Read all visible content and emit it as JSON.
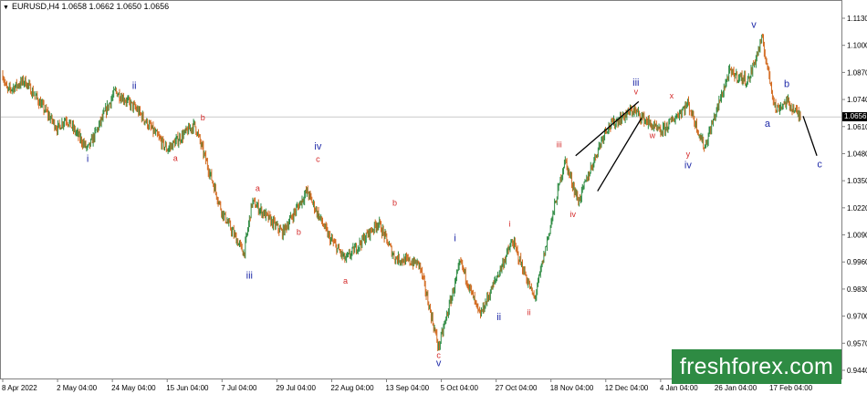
{
  "header": {
    "symbol": "EURUSD,H4",
    "ohlc": "1.0658 1.0662 1.0650 1.0656"
  },
  "current_price_label": "1.0656",
  "brand": "freshforex.com",
  "colors": {
    "up_candle": "#2e8b43",
    "down_candle": "#d2691e",
    "primary_wave_label": "#1f2aa8",
    "minor_wave_label": "#d42a2a",
    "trend_lines": "#000000",
    "brand_bg": "#2e8b43",
    "price_line": "#c8c8c8"
  },
  "chart_data": {
    "type": "candlestick",
    "instrument": "EURUSD",
    "timeframe": "H4",
    "x_tick_labels": [
      "8 Apr 2022",
      "2 May 04:00",
      "24 May 04:00",
      "15 Jun 04:00",
      "7 Jul 04:00",
      "29 Jul 04:00",
      "22 Aug 04:00",
      "13 Sep 04:00",
      "5 Oct 04:00",
      "27 Oct 04:00",
      "18 Nov 04:00",
      "12 Dec 04:00",
      "4 Jan 04:00",
      "26 Jan 04:00",
      "17 Feb 04:00"
    ],
    "y_tick_labels": [
      "1.1130",
      "1.1000",
      "1.0870",
      "1.0740",
      "1.0610",
      "1.0480",
      "1.0350",
      "1.0220",
      "1.0090",
      "0.9960",
      "0.9830",
      "0.9700",
      "0.9570",
      "0.9440"
    ],
    "ylim": [
      0.944,
      1.113
    ],
    "current_price": 1.0656,
    "price_path": [
      {
        "x": 0,
        "y": 1.086
      },
      {
        "x": 0.08,
        "y": 1.078
      },
      {
        "x": 0.4,
        "y": 1.083
      },
      {
        "x": 1.0,
        "y": 1.06
      },
      {
        "x": 1.15,
        "y": 1.065
      },
      {
        "x": 1.55,
        "y": 1.05
      },
      {
        "x": 2.05,
        "y": 1.078
      },
      {
        "x": 2.45,
        "y": 1.069
      },
      {
        "x": 3.0,
        "y": 1.05
      },
      {
        "x": 3.5,
        "y": 1.062
      },
      {
        "x": 4.0,
        "y": 1.02
      },
      {
        "x": 4.4,
        "y": 1.0
      },
      {
        "x": 4.55,
        "y": 1.025
      },
      {
        "x": 5.1,
        "y": 1.01
      },
      {
        "x": 5.55,
        "y": 1.03
      },
      {
        "x": 5.95,
        "y": 1.008
      },
      {
        "x": 6.25,
        "y": 0.997
      },
      {
        "x": 6.85,
        "y": 1.015
      },
      {
        "x": 7.15,
        "y": 0.998
      },
      {
        "x": 7.6,
        "y": 0.995
      },
      {
        "x": 7.95,
        "y": 0.955
      },
      {
        "x": 8.0,
        "y": 0.96
      },
      {
        "x": 8.35,
        "y": 0.996
      },
      {
        "x": 8.7,
        "y": 0.97
      },
      {
        "x": 8.95,
        "y": 0.985
      },
      {
        "x": 9.3,
        "y": 1.006
      },
      {
        "x": 9.7,
        "y": 0.978
      },
      {
        "x": 10.25,
        "y": 1.045
      },
      {
        "x": 10.5,
        "y": 1.025
      },
      {
        "x": 11.0,
        "y": 1.06
      },
      {
        "x": 11.5,
        "y": 1.069
      },
      {
        "x": 12.0,
        "y": 1.058
      },
      {
        "x": 12.5,
        "y": 1.072
      },
      {
        "x": 12.8,
        "y": 1.051
      },
      {
        "x": 13.25,
        "y": 1.087
      },
      {
        "x": 13.6,
        "y": 1.083
      },
      {
        "x": 13.85,
        "y": 1.103
      },
      {
        "x": 14.1,
        "y": 1.069
      },
      {
        "x": 14.3,
        "y": 1.073
      },
      {
        "x": 14.55,
        "y": 1.0656
      }
    ],
    "wave_labels": [
      {
        "text": "ii",
        "x": 2.4,
        "y": 1.079,
        "level": "primary"
      },
      {
        "text": "i",
        "x": 1.55,
        "y": 1.044,
        "level": "primary"
      },
      {
        "text": "b",
        "x": 3.65,
        "y": 1.064,
        "level": "minor"
      },
      {
        "text": "a",
        "x": 3.15,
        "y": 1.0445,
        "level": "minor"
      },
      {
        "text": "iv",
        "x": 5.75,
        "y": 1.05,
        "level": "primary"
      },
      {
        "text": "c",
        "x": 5.75,
        "y": 1.044,
        "level": "minor"
      },
      {
        "text": "a",
        "x": 4.65,
        "y": 1.03,
        "level": "minor"
      },
      {
        "text": "b",
        "x": 5.4,
        "y": 1.009,
        "level": "minor"
      },
      {
        "text": "iii",
        "x": 4.5,
        "y": 0.988,
        "level": "primary"
      },
      {
        "text": "b",
        "x": 7.15,
        "y": 1.023,
        "level": "minor"
      },
      {
        "text": "a",
        "x": 6.25,
        "y": 0.9855,
        "level": "minor"
      },
      {
        "text": "i",
        "x": 8.25,
        "y": 1.006,
        "level": "primary"
      },
      {
        "text": "c",
        "x": 7.95,
        "y": 0.95,
        "level": "minor"
      },
      {
        "text": "v",
        "x": 7.95,
        "y": 0.946,
        "level": "primary"
      },
      {
        "text": "ii",
        "x": 9.05,
        "y": 0.968,
        "level": "primary"
      },
      {
        "text": "i",
        "x": 9.25,
        "y": 1.013,
        "level": "minor"
      },
      {
        "text": "ii",
        "x": 9.6,
        "y": 0.9705,
        "level": "minor"
      },
      {
        "text": "iii",
        "x": 10.15,
        "y": 1.051,
        "level": "minor"
      },
      {
        "text": "iv",
        "x": 10.4,
        "y": 1.0175,
        "level": "minor"
      },
      {
        "text": "iii",
        "x": 11.55,
        "y": 1.0805,
        "level": "primary"
      },
      {
        "text": "v",
        "x": 11.55,
        "y": 1.0765,
        "level": "minor"
      },
      {
        "text": "x",
        "x": 12.2,
        "y": 1.0745,
        "level": "minor"
      },
      {
        "text": "w",
        "x": 11.85,
        "y": 1.0555,
        "level": "minor"
      },
      {
        "text": "y",
        "x": 12.5,
        "y": 1.0465,
        "level": "minor"
      },
      {
        "text": "iv",
        "x": 12.5,
        "y": 1.041,
        "level": "primary"
      },
      {
        "text": "v",
        "x": 13.7,
        "y": 1.1085,
        "level": "primary"
      },
      {
        "text": "b",
        "x": 14.3,
        "y": 1.08,
        "level": "primary"
      },
      {
        "text": "a",
        "x": 13.95,
        "y": 1.061,
        "level": "primary"
      },
      {
        "text": "c",
        "x": 14.9,
        "y": 1.0415,
        "level": "primary"
      }
    ],
    "lines": [
      {
        "from": {
          "x": 10.45,
          "y": 1.047
        },
        "to": {
          "x": 11.6,
          "y": 1.073
        }
      },
      {
        "from": {
          "x": 10.85,
          "y": 1.03
        },
        "to": {
          "x": 11.65,
          "y": 1.065
        }
      },
      {
        "from": {
          "x": 14.6,
          "y": 1.066
        },
        "to": {
          "x": 14.85,
          "y": 1.047
        }
      }
    ]
  }
}
